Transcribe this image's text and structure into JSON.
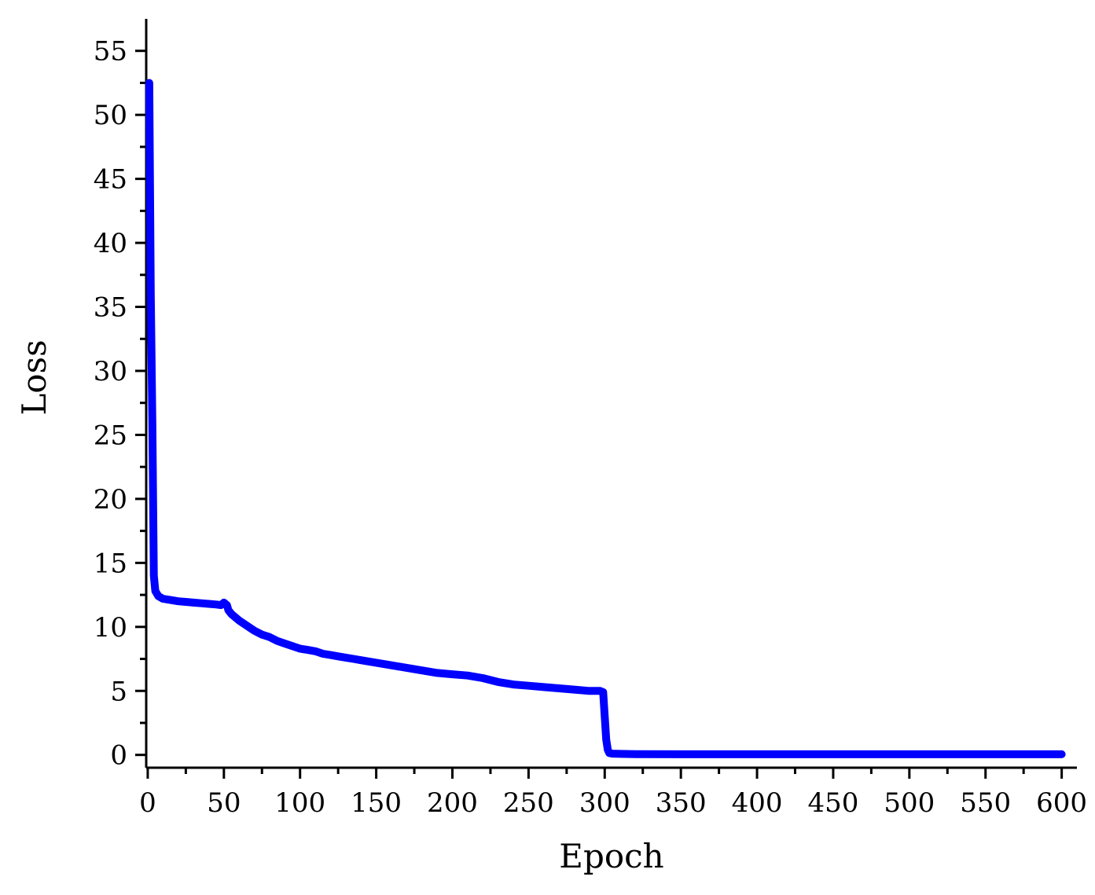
{
  "chart_data": {
    "type": "line",
    "title": "",
    "xlabel": "Epoch",
    "ylabel": "Loss",
    "xlim": [
      -1,
      610
    ],
    "ylim": [
      -1,
      57.5
    ],
    "x_ticks": [
      0,
      50,
      100,
      150,
      200,
      250,
      300,
      350,
      400,
      450,
      500,
      550,
      600
    ],
    "y_ticks": [
      0,
      5,
      10,
      15,
      20,
      25,
      30,
      35,
      40,
      45,
      50,
      55
    ],
    "x_minor_step": 25,
    "y_minor_step": 2.5,
    "grid": false,
    "line_color": "#0000ff",
    "series": [
      {
        "x": [
          1,
          2,
          3,
          4,
          5,
          7,
          10,
          15,
          20,
          25,
          30,
          35,
          40,
          45,
          48,
          50,
          52,
          53,
          55,
          60,
          65,
          70,
          75,
          80,
          85,
          90,
          95,
          100,
          105,
          110,
          115,
          120,
          125,
          130,
          135,
          140,
          145,
          150,
          160,
          170,
          180,
          190,
          200,
          210,
          220,
          230,
          240,
          250,
          260,
          270,
          280,
          290,
          297,
          299,
          300,
          301,
          302,
          303,
          305,
          310,
          320,
          350,
          400,
          450,
          500,
          550,
          600
        ],
        "values": [
          52.5,
          36,
          26,
          14,
          12.8,
          12.4,
          12.2,
          12.1,
          12.0,
          11.95,
          11.9,
          11.85,
          11.8,
          11.75,
          11.7,
          11.9,
          11.7,
          11.3,
          11.0,
          10.5,
          10.1,
          9.7,
          9.4,
          9.2,
          8.9,
          8.7,
          8.5,
          8.3,
          8.2,
          8.1,
          7.9,
          7.8,
          7.7,
          7.6,
          7.5,
          7.4,
          7.3,
          7.2,
          7.0,
          6.8,
          6.6,
          6.4,
          6.3,
          6.2,
          6.0,
          5.7,
          5.5,
          5.4,
          5.3,
          5.2,
          5.1,
          5.0,
          5.0,
          4.9,
          3.0,
          1.2,
          0.4,
          0.15,
          0.1,
          0.08,
          0.06,
          0.05,
          0.05,
          0.05,
          0.05,
          0.05,
          0.05
        ]
      }
    ]
  }
}
